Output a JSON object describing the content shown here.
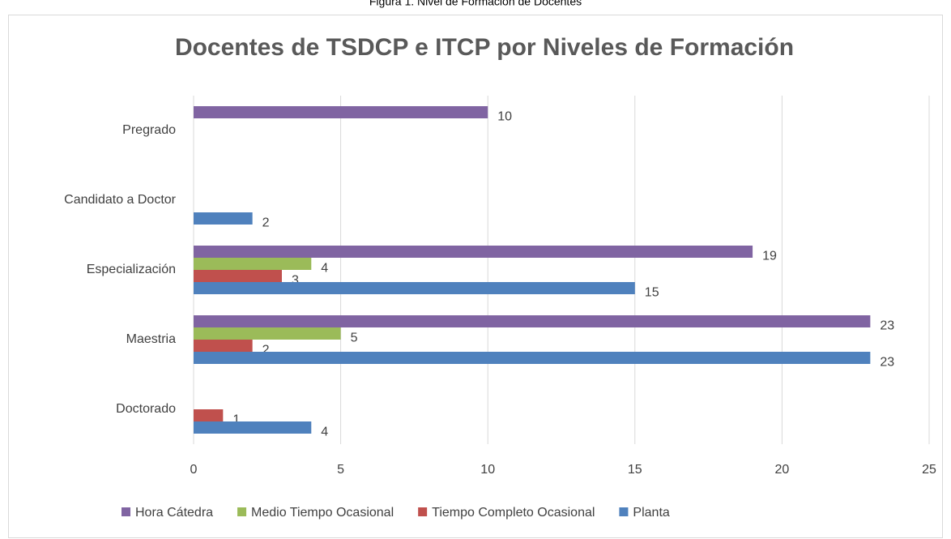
{
  "caption": "Figura 1. Nivel de Formación de Docentes",
  "chart_data": {
    "type": "barh",
    "title": "Docentes de TSDCP e ITCP por Niveles de Formación",
    "categories": [
      "Doctorado",
      "Maestria",
      "Especialización",
      "Candidato a Doctor",
      "Pregrado"
    ],
    "series": [
      {
        "name": "Hora Cátedra",
        "color": "#8064a2",
        "values": [
          null,
          23,
          19,
          null,
          10
        ]
      },
      {
        "name": "Medio Tiempo Ocasional",
        "color": "#9bbb59",
        "values": [
          null,
          5,
          4,
          null,
          null
        ]
      },
      {
        "name": "Tiempo Completo Ocasional",
        "color": "#c0504d",
        "values": [
          1,
          2,
          3,
          null,
          null
        ]
      },
      {
        "name": "Planta",
        "color": "#4f81bd",
        "values": [
          4,
          23,
          15,
          2,
          null
        ]
      }
    ],
    "xlim": [
      0,
      25
    ],
    "xticks": [
      0,
      5,
      10,
      15,
      20,
      25
    ],
    "grid": true,
    "legend": "bottom"
  }
}
